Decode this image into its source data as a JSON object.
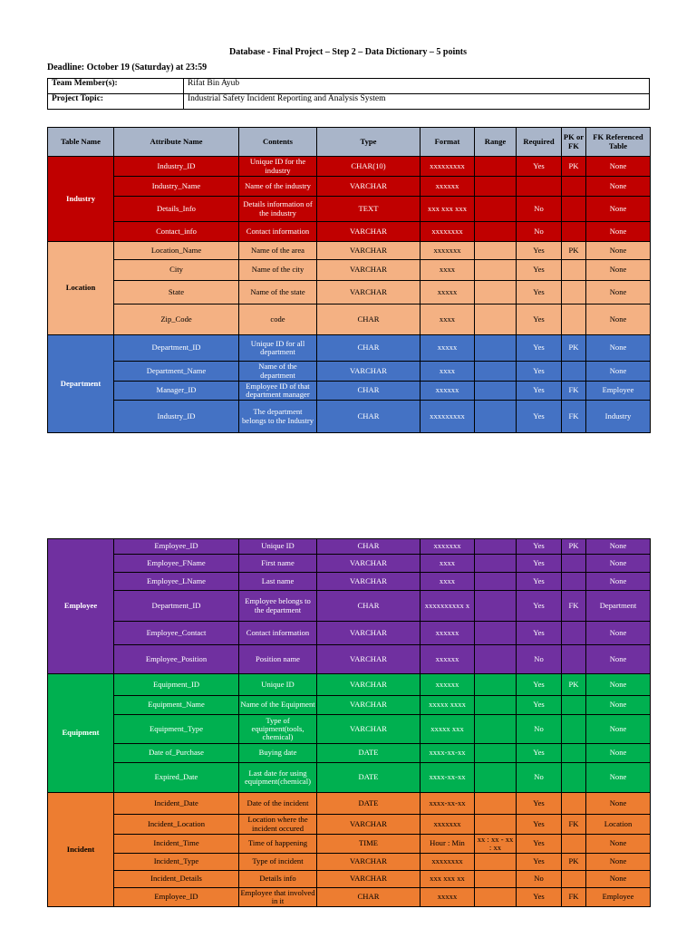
{
  "doc": {
    "title": "Database - Final Project – Step 2 – Data Dictionary – 5 points",
    "deadline": "Deadline: October 19 (Saturday) at 23:59",
    "team_label": "Team Member(s):",
    "team_value": "Rifat Bin Ayub",
    "topic_label": "Project Topic:",
    "topic_value": "Industrial Safety Incident Reporting and Analysis System"
  },
  "headers": [
    "Table Name",
    "Attribute Name",
    "Contents",
    "Type",
    "Format",
    "Range",
    "Required",
    "PK or FK",
    "FK Referenced Table"
  ],
  "tables_page1": [
    {
      "name": "Industry",
      "color": "#c00000",
      "rows": [
        {
          "attr": "Industry_ID",
          "contents": "Unique ID for the industry",
          "type": "CHAR(10)",
          "format": "xxxxxxxxx",
          "range": "",
          "required": "Yes",
          "pkfk": "PK",
          "ref": "None",
          "h": 22
        },
        {
          "attr": "Industry_Name",
          "contents": "Name of the industry",
          "type": "VARCHAR",
          "format": "xxxxxx",
          "range": "",
          "required": "",
          "pkfk": "",
          "ref": "None",
          "h": 22
        },
        {
          "attr": "Details_Info",
          "contents": "Details information of the industry",
          "type": "TEXT",
          "format": "xxx xxx xxx",
          "range": "",
          "required": "No",
          "pkfk": "",
          "ref": "None",
          "h": 28
        },
        {
          "attr": "Contact_info",
          "contents": "Contact information",
          "type": "VARCHAR",
          "format": "xxxxxxxx",
          "range": "",
          "required": "No",
          "pkfk": "",
          "ref": "None",
          "h": 22
        }
      ]
    },
    {
      "name": "Location",
      "color": "#f4b183",
      "rows": [
        {
          "attr": "Location_Name",
          "contents": "Name  of the area",
          "type": "VARCHAR",
          "format": "xxxxxxx",
          "range": "",
          "required": "Yes",
          "pkfk": "PK",
          "ref": "None",
          "h": 20
        },
        {
          "attr": "City",
          "contents": "Name of the city",
          "type": "VARCHAR",
          "format": "xxxx",
          "range": "",
          "required": "Yes",
          "pkfk": "",
          "ref": "None",
          "h": 23
        },
        {
          "attr": "State",
          "contents": "Name of the state",
          "type": "VARCHAR",
          "format": "xxxxx",
          "range": "",
          "required": "Yes",
          "pkfk": "",
          "ref": "None",
          "h": 26
        },
        {
          "attr": "Zip_Code",
          "contents": "code",
          "type": "CHAR",
          "format": "xxxx",
          "range": "",
          "required": "Yes",
          "pkfk": "",
          "ref": "None",
          "h": 34
        }
      ]
    },
    {
      "name": "Department",
      "color": "#4472c4",
      "rows": [
        {
          "attr": "Department_ID",
          "contents": "Unique ID for all department",
          "type": "CHAR",
          "format": "xxxxx",
          "range": "",
          "required": "Yes",
          "pkfk": "PK",
          "ref": "None",
          "h": 29
        },
        {
          "attr": "Department_Name",
          "contents": "Name of the department",
          "type": "VARCHAR",
          "format": "xxxx",
          "range": "",
          "required": "Yes",
          "pkfk": "",
          "ref": "None",
          "h": 22
        },
        {
          "attr": "Manager_ID",
          "contents": "Employee ID of that department manager",
          "type": "CHAR",
          "format": "xxxxxx",
          "range": "",
          "required": "Yes",
          "pkfk": "FK",
          "ref": "Employee",
          "h": 21
        },
        {
          "attr": "Industry_ID",
          "contents": "The department belongs to the Industry",
          "type": "CHAR",
          "format": "xxxxxxxxx",
          "range": "",
          "required": "Yes",
          "pkfk": "FK",
          "ref": "Industry",
          "h": 36
        }
      ]
    }
  ],
  "tables_page2": [
    {
      "name": "Employee",
      "color": "#7030a0",
      "rows": [
        {
          "attr": "Employee_ID",
          "contents": "Unique ID",
          "type": "CHAR",
          "format": "xxxxxxx",
          "range": "",
          "required": "Yes",
          "pkfk": "PK",
          "ref": "None",
          "h": 17
        },
        {
          "attr": "Employee_FName",
          "contents": "First name",
          "type": "VARCHAR",
          "format": "xxxx",
          "range": "",
          "required": "Yes",
          "pkfk": "",
          "ref": "None",
          "h": 20
        },
        {
          "attr": "Employee_LName",
          "contents": "Last name",
          "type": "VARCHAR",
          "format": "xxxx",
          "range": "",
          "required": "Yes",
          "pkfk": "",
          "ref": "None",
          "h": 20
        },
        {
          "attr": "Department_ID",
          "contents": "Employee belongs to the department",
          "type": "CHAR",
          "format": "xxxxxxxxxx x",
          "range": "",
          "required": "Yes",
          "pkfk": "FK",
          "ref": "Department",
          "h": 34
        },
        {
          "attr": "Employee_Contact",
          "contents": "Contact information",
          "type": "VARCHAR",
          "format": "xxxxxx",
          "range": "",
          "required": "Yes",
          "pkfk": "",
          "ref": "None",
          "h": 26
        },
        {
          "attr": "Employee_Position",
          "contents": "Position name",
          "type": "VARCHAR",
          "format": "xxxxxx",
          "range": "",
          "required": "No",
          "pkfk": "",
          "ref": "None",
          "h": 32
        }
      ]
    },
    {
      "name": "Equipment",
      "color": "#00b050",
      "rows": [
        {
          "attr": "Equipment_ID",
          "contents": "Unique ID",
          "type": "VARCHAR",
          "format": "xxxxxx",
          "range": "",
          "required": "Yes",
          "pkfk": "PK",
          "ref": "None",
          "h": 24
        },
        {
          "attr": "Equipment_Name",
          "contents": "Name of the Equipment",
          "type": "VARCHAR",
          "format": "xxxxx xxxx",
          "range": "",
          "required": "Yes",
          "pkfk": "",
          "ref": "None",
          "h": 21
        },
        {
          "attr": "Equipment_Type",
          "contents": "Type of equipment(tools, chemical)",
          "type": "VARCHAR",
          "format": "xxxxx xxx",
          "range": "",
          "required": "No",
          "pkfk": "",
          "ref": "None",
          "h": 32
        },
        {
          "attr": "Date of_Purchase",
          "contents": "Buying date",
          "type": "DATE",
          "format": "xxxx-xx-xx",
          "range": "",
          "required": "Yes",
          "pkfk": "",
          "ref": "None",
          "h": 21
        },
        {
          "attr": "Expired_Date",
          "contents": "Last date for using equipment(chemical)",
          "type": "DATE",
          "format": "xxxx-xx-xx",
          "range": "",
          "required": "No",
          "pkfk": "",
          "ref": "None",
          "h": 33
        }
      ]
    },
    {
      "name": "Incident",
      "color": "#ed7d31",
      "rows": [
        {
          "attr": "Incident_Date",
          "contents": "Date of the incident",
          "type": "DATE",
          "format": "xxxx-xx-xx",
          "range": "",
          "required": "Yes",
          "pkfk": "",
          "ref": "None",
          "h": 24
        },
        {
          "attr": "Incident_Location",
          "contents": "Location where the incident occured",
          "type": "VARCHAR",
          "format": "xxxxxxx",
          "range": "",
          "required": "Yes",
          "pkfk": "FK",
          "ref": "Location",
          "h": 22
        },
        {
          "attr": "Incident_Time",
          "contents": "Time of happening",
          "type": "TIME",
          "format": "Hour : Min",
          "range": "xx : xx - xx : xx",
          "required": "Yes",
          "pkfk": "",
          "ref": "None",
          "h": 21
        },
        {
          "attr": "Incident_Type",
          "contents": "Type of incident",
          "type": "VARCHAR",
          "format": "xxxxxxxx",
          "range": "",
          "required": "Yes",
          "pkfk": "PK",
          "ref": "None",
          "h": 19
        },
        {
          "attr": "Incident_Details",
          "contents": "Details info",
          "type": "VARCHAR",
          "format": "xxx xxx xx",
          "range": "",
          "required": "No",
          "pkfk": "",
          "ref": "None",
          "h": 19
        },
        {
          "attr": "Employee_ID",
          "contents": "Employee that involved in it",
          "type": "CHAR",
          "format": "xxxxx",
          "range": "",
          "required": "Yes",
          "pkfk": "FK",
          "ref": "Employee",
          "h": 21
        }
      ]
    }
  ]
}
